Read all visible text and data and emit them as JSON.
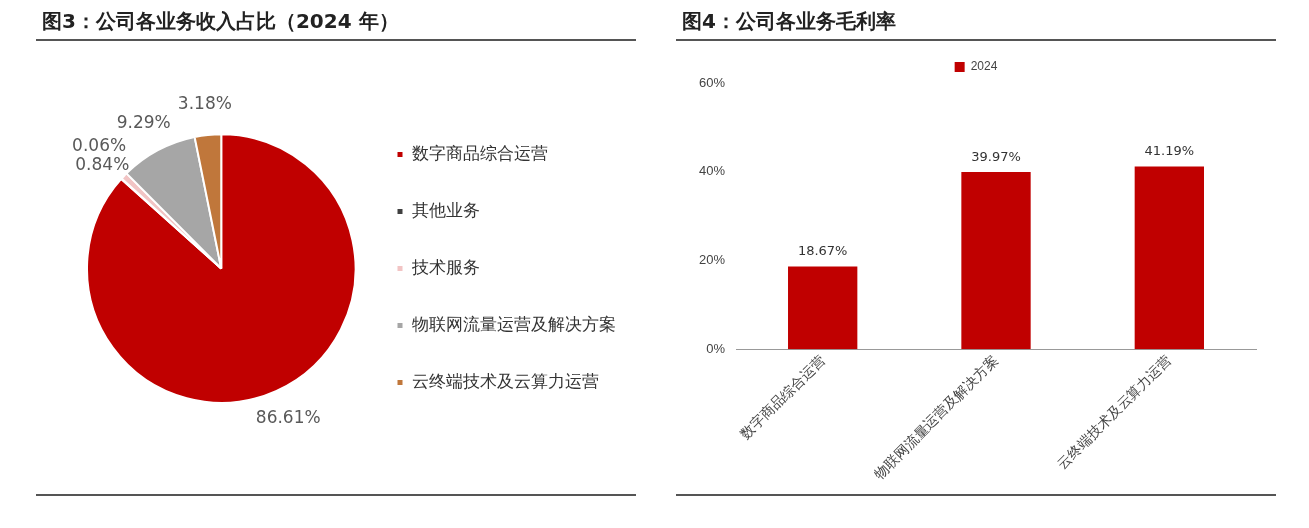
{
  "chart_data": [
    {
      "type": "pie",
      "title": "图3：公司各业务收入占比（2024 年）",
      "categories": [
        "数字商品综合运营",
        "其他业务",
        "技术服务",
        "物联网流量运营及解决方案",
        "云终端技术及云算力运营"
      ],
      "values": [
        86.61,
        0.06,
        0.84,
        9.29,
        3.18
      ],
      "colors": [
        "#c00000",
        "#404040",
        "#f2c4c4",
        "#a6a6a6",
        "#c0773b"
      ],
      "value_labels": [
        "86.61%",
        "0.06%",
        "0.84%",
        "9.29%",
        "3.18%"
      ],
      "legend": "right"
    },
    {
      "type": "bar",
      "title": "图4：公司各业务毛利率",
      "categories": [
        "数字商品综合运营",
        "物联网流量运营及解决方案",
        "云终端技术及云算力运营"
      ],
      "series": [
        {
          "name": "2024",
          "color": "#c00000",
          "values": [
            18.67,
            39.97,
            41.19
          ]
        }
      ],
      "value_labels": [
        "18.67%",
        "39.97%",
        "41.19%"
      ],
      "ylim": [
        0,
        60
      ],
      "yticks": [
        {
          "value": 0,
          "label": "0%"
        },
        {
          "value": 20,
          "label": "20%"
        },
        {
          "value": 40,
          "label": "40%"
        },
        {
          "value": 60,
          "label": "60%"
        }
      ],
      "grid": false,
      "legend": "top"
    }
  ]
}
